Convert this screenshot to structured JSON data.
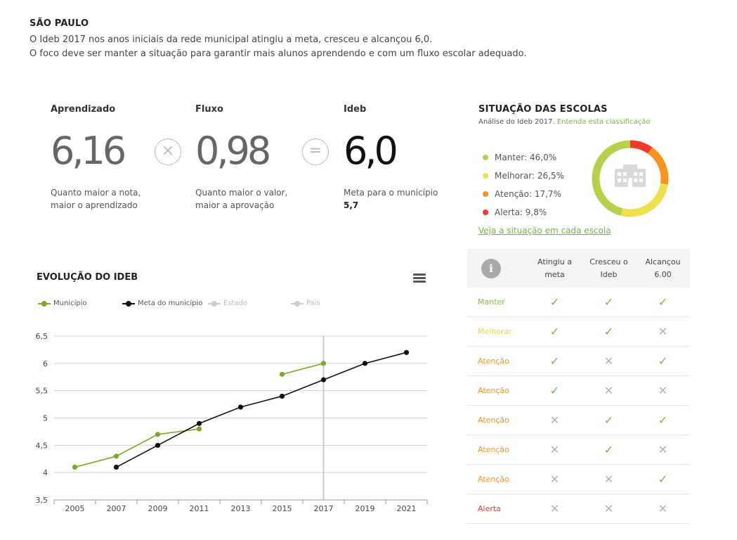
{
  "header": {
    "city": "SÃO PAULO",
    "line1": "O Ideb 2017 nos anos iniciais da rede municipal atingiu a meta, cresceu e alcançou 6,0.",
    "line2": "O foco deve ser manter a situação para garantir mais alunos aprendendo e com um fluxo escolar adequado."
  },
  "metrics": {
    "aprendizado": {
      "label": "Aprendizado",
      "value": "6,16",
      "desc1": "Quanto maior a nota,",
      "desc2": "maior o aprendizado"
    },
    "fluxo": {
      "label": "Fluxo",
      "value": "0,98",
      "desc1": "Quanto maior o valor,",
      "desc2": "maior a aprovação"
    },
    "ideb": {
      "label": "Ideb",
      "value": "6,0",
      "desc1": "Meta para o município",
      "desc2": "5,7"
    },
    "op_times": "×",
    "op_equals": "="
  },
  "situacao": {
    "title": "SITUAÇÃO DAS ESCOLAS",
    "sub": "Análise do Ideb 2017.",
    "link": "Entenda esta classificação",
    "items": [
      {
        "label": "Manter: 46,0%",
        "color": "#b5d14a",
        "value": 46.0
      },
      {
        "label": "Melhorar: 26,5%",
        "color": "#f0e04c",
        "value": 26.5
      },
      {
        "label": "Atenção: 17,7%",
        "color": "#f7941d",
        "value": 17.7
      },
      {
        "label": "Alerta: 9,8%",
        "color": "#ef3b2c",
        "value": 9.8
      }
    ],
    "veja": "Veja a situação em cada escola",
    "donut_icon": "school-building-icon"
  },
  "evolucao": {
    "title": "EVOLUÇÃO DO IDEB",
    "legend": {
      "municipio": "Município",
      "meta": "Meta do município",
      "estado": "Estado",
      "pais": "País"
    }
  },
  "chart_data": {
    "type": "line",
    "title": "EVOLUÇÃO DO IDEB",
    "categories": [
      "2005",
      "2007",
      "2009",
      "2011",
      "2013",
      "2015",
      "2017",
      "2019",
      "2021"
    ],
    "ylim": [
      3.5,
      6.5
    ],
    "yticks": [
      "3,5",
      "4",
      "4,5",
      "5",
      "5,5",
      "6",
      "6,5"
    ],
    "ytick_values": [
      3.5,
      4,
      4.5,
      5,
      5.5,
      6,
      6.5
    ],
    "highlight_category": "2017",
    "series": [
      {
        "name": "Município",
        "color": "#7ba829",
        "segments": [
          [
            4.1,
            4.3,
            4.7,
            4.8,
            null,
            null,
            null,
            null,
            null
          ],
          [
            null,
            null,
            null,
            null,
            null,
            5.8,
            6.0,
            null,
            null
          ]
        ]
      },
      {
        "name": "Meta do município",
        "color": "#111111",
        "segments": [
          [
            null,
            4.1,
            4.5,
            4.9,
            5.2,
            5.4,
            5.7,
            6.0,
            6.2
          ]
        ]
      }
    ]
  },
  "tabela": {
    "info": "i",
    "headers": [
      "Atingiu a meta",
      "Cresceu o Ideb",
      "Alcançou 6.00"
    ],
    "rows": [
      {
        "name": "Manter",
        "color": "#8cbf3f",
        "marks": [
          "✓",
          "✓",
          "✓"
        ]
      },
      {
        "name": "Melhorar",
        "color": "#e8d84a",
        "marks": [
          "✓",
          "✓",
          "✕"
        ]
      },
      {
        "name": "Atenção",
        "color": "#f7941d",
        "marks": [
          "✓",
          "✕",
          "✓"
        ]
      },
      {
        "name": "Atenção",
        "color": "#f7941d",
        "marks": [
          "✓",
          "✕",
          "✕"
        ]
      },
      {
        "name": "Atenção",
        "color": "#f7941d",
        "marks": [
          "✕",
          "✓",
          "✓"
        ]
      },
      {
        "name": "Atenção",
        "color": "#f7941d",
        "marks": [
          "✕",
          "✓",
          "✕"
        ]
      },
      {
        "name": "Atenção",
        "color": "#f7941d",
        "marks": [
          "✕",
          "✕",
          "✓"
        ]
      },
      {
        "name": "Alerta",
        "color": "#ef3b2c",
        "marks": [
          "✕",
          "✕",
          "✕"
        ]
      }
    ]
  }
}
